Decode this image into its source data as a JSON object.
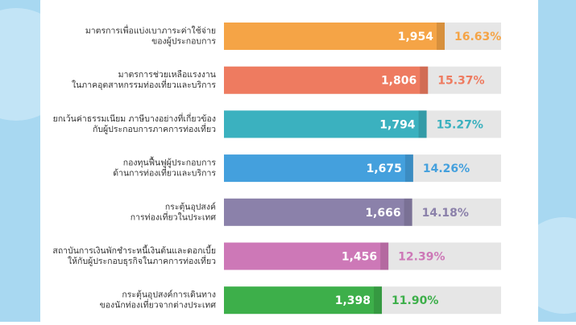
{
  "chart_data": {
    "type": "bar",
    "orientation": "horizontal",
    "categories": [
      [
        "มาตรการเพื่อแบ่งเบาภาระค่าใช้จ่าย",
        "ของผู้ประกอบการ"
      ],
      [
        "มาตรการช่วยเหลือแรงงาน",
        "ในภาคอุตสาหกรรมท่องเที่ยวและบริการ"
      ],
      [
        "ยกเว้นค่าธรรมเนียม ภาษีบางอย่างที่เกี่ยวข้อง",
        "กับผู้ประกอบการภาคการท่องเที่ยว"
      ],
      [
        "กองทุนฟื้นฟูผู้ประกอบการ",
        "ด้านการท่องเที่ยวและบริการ"
      ],
      [
        "กระตุ้นอุปสงค์",
        "การท่องเที่ยวในประเทศ"
      ],
      [
        "สถาบันการเงินพักชำระหนี้เงินต้นและดอกเบี้ย",
        "ให้กับผู้ประกอบธุรกิจในภาคการท่องเที่ยว"
      ],
      [
        "กระตุ้นอุปสงค์การเดินทาง",
        "ของนักท่องเที่ยวจากต่างประเทศ"
      ]
    ],
    "values": [
      1954,
      1806,
      1794,
      1675,
      1666,
      1456,
      1398
    ],
    "value_labels": [
      "1,954",
      "1,806",
      "1,794",
      "1,675",
      "1,666",
      "1,456",
      "1,398"
    ],
    "shares": [
      16.63,
      15.37,
      15.27,
      14.26,
      14.18,
      12.39,
      11.9
    ],
    "share_labels": [
      "16.63%",
      "15.37%",
      "15.27%",
      "14.26%",
      "14.18%",
      "12.39%",
      "11.90%"
    ],
    "colors": [
      "#f5a446",
      "#ee7b60",
      "#3bb1bf",
      "#44a0dd",
      "#8b81aa",
      "#cd78b7",
      "#3daf4a"
    ]
  }
}
